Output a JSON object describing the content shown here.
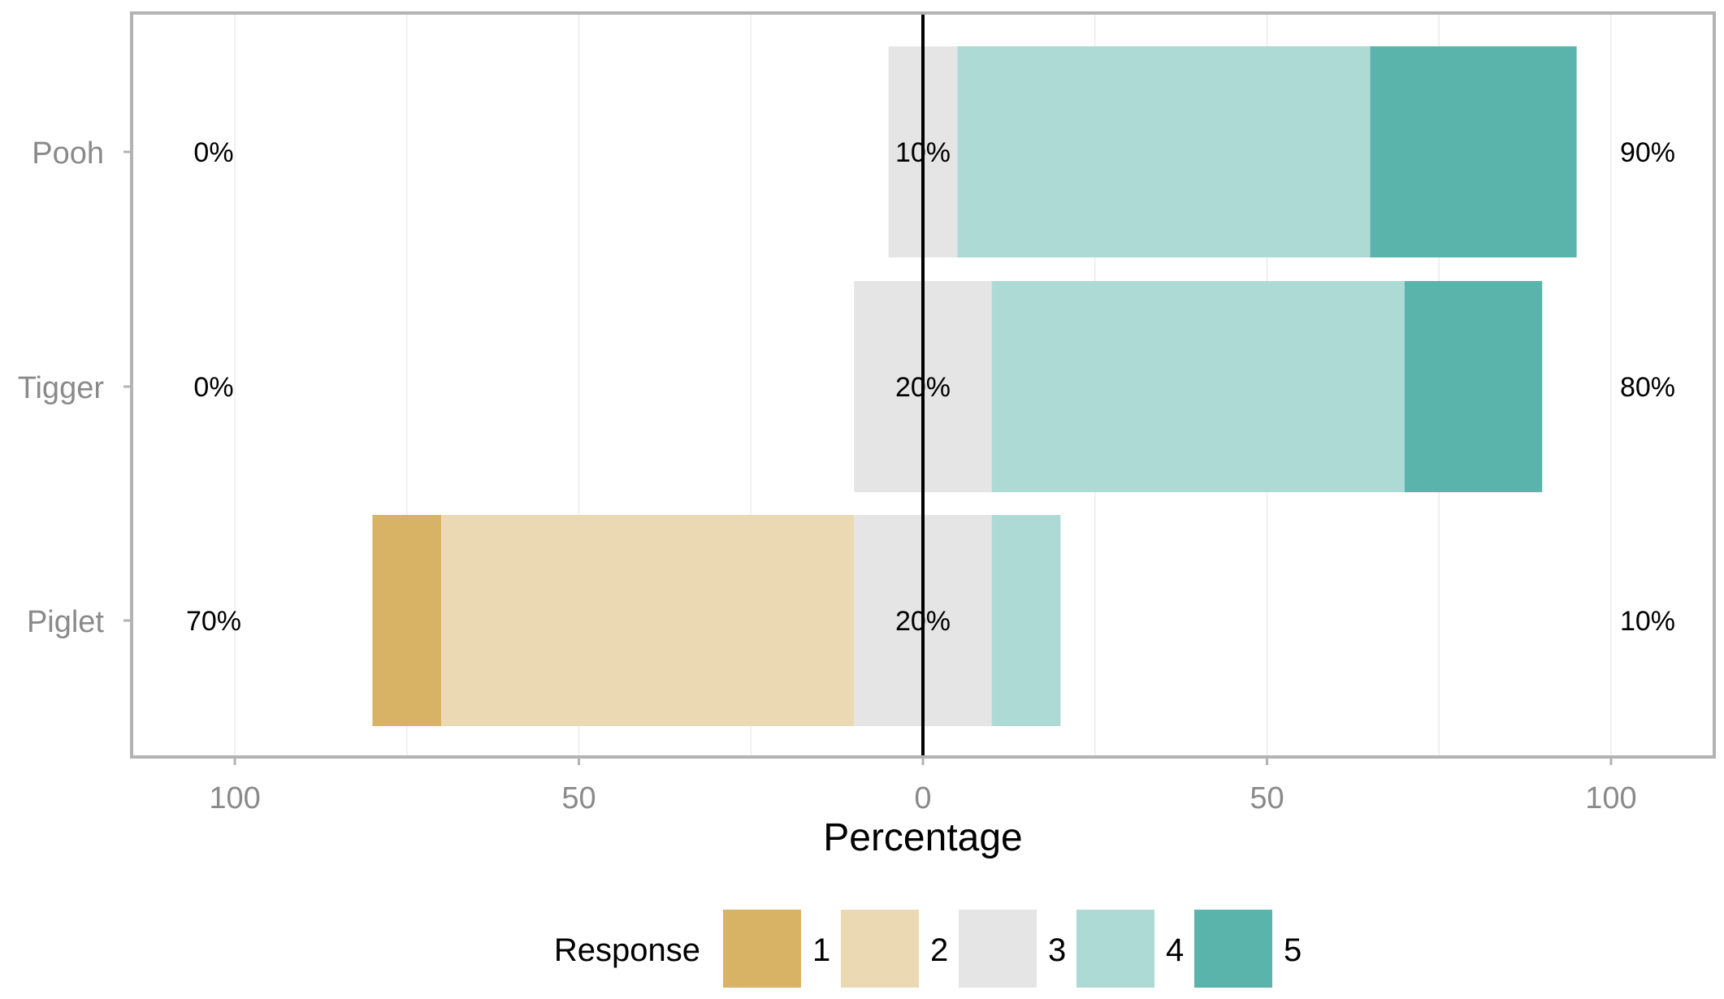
{
  "chart_data": {
    "type": "bar",
    "orientation": "horizontal",
    "stacked": true,
    "diverging": true,
    "categories": [
      "Pooh",
      "Tigger",
      "Piglet"
    ],
    "levels": [
      "1",
      "2",
      "3",
      "4",
      "5"
    ],
    "series": [
      {
        "name": "1",
        "values": [
          0,
          0,
          10
        ],
        "color": "#D8B365"
      },
      {
        "name": "2",
        "values": [
          0,
          0,
          60
        ],
        "color": "#EAD9B2"
      },
      {
        "name": "3",
        "values": [
          10,
          20,
          20
        ],
        "color": "#E5E5E5"
      },
      {
        "name": "4",
        "values": [
          60,
          60,
          10
        ],
        "color": "#AEDAD5"
      },
      {
        "name": "5",
        "values": [
          30,
          20,
          0
        ],
        "color": "#5AB4AC"
      }
    ],
    "left_pct_labels": [
      "0%",
      "0%",
      "70%"
    ],
    "center_pct_labels": [
      "10%",
      "20%",
      "20%"
    ],
    "right_pct_labels": [
      "90%",
      "80%",
      "10%"
    ],
    "x_ticks": [
      -100,
      -50,
      0,
      50,
      100
    ],
    "x_tick_labels": [
      "100",
      "50",
      "0",
      "50",
      "100"
    ],
    "xlim": [
      -115,
      115
    ],
    "xlabel": "Percentage",
    "ylabel": "",
    "legend": {
      "title": "Response",
      "position": "bottom"
    },
    "grid": true
  }
}
